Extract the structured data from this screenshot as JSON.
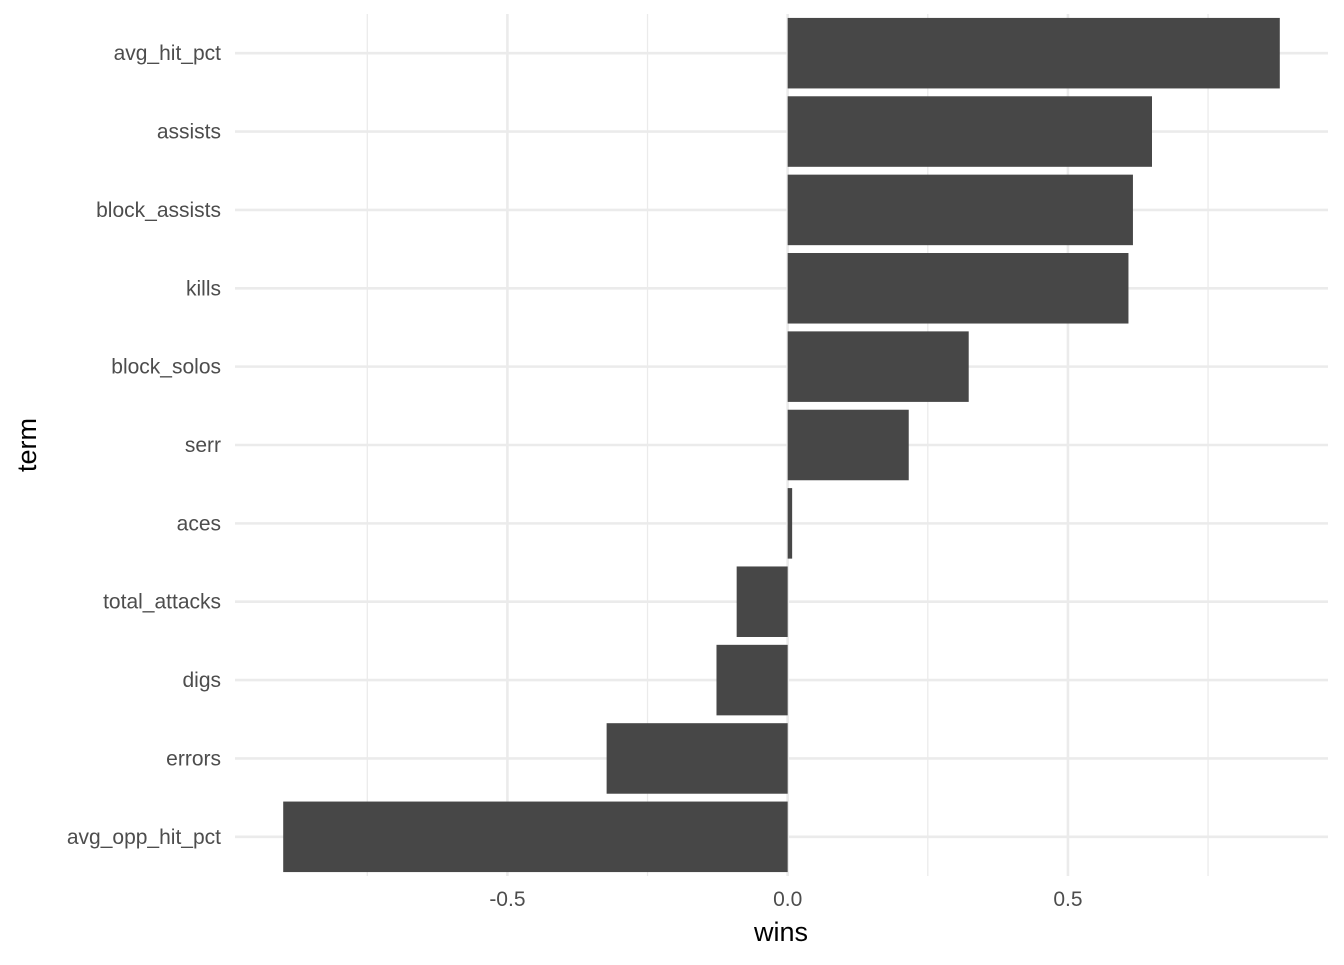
{
  "chart_data": {
    "type": "bar",
    "orientation": "horizontal",
    "title": "",
    "xlabel": "wins",
    "ylabel": "term",
    "categories": [
      "avg_hit_pct",
      "assists",
      "block_assists",
      "kills",
      "block_solos",
      "serr",
      "aces",
      "total_attacks",
      "digs",
      "errors",
      "avg_opp_hit_pct"
    ],
    "values": [
      0.878,
      0.65,
      0.616,
      0.608,
      0.323,
      0.216,
      0.008,
      -0.091,
      -0.127,
      -0.323,
      -0.9
    ],
    "xlim": [
      -0.986,
      0.964
    ],
    "xticks": [
      -0.5,
      0.0,
      0.5
    ],
    "xtick_labels": [
      "-0.5",
      "0.0",
      "0.5"
    ],
    "grid": true,
    "legend": "none",
    "bar_color": "#474747",
    "grid_color": "#ebebeb"
  }
}
